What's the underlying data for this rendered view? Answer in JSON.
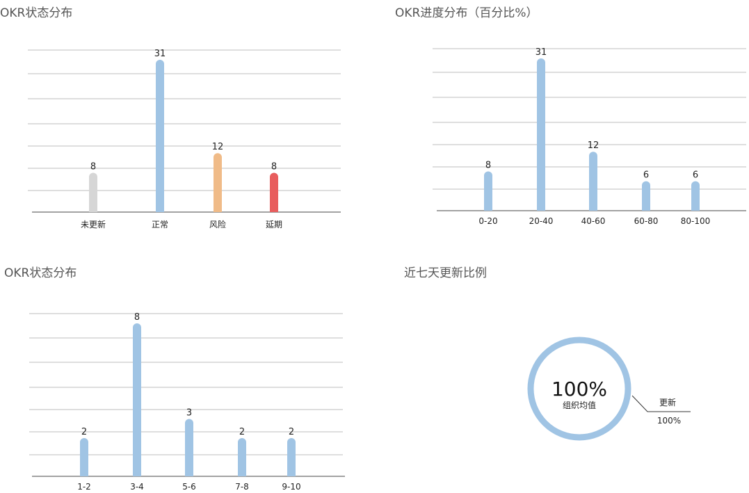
{
  "chart_data": [
    {
      "type": "bar",
      "title": "OKR状态分布",
      "categories": [
        "未更新",
        "正常",
        "风险",
        "延期"
      ],
      "values": [
        8,
        31,
        12,
        8
      ],
      "colors": [
        "#d6d6d6",
        "#a0c4e4",
        "#f0bb88",
        "#e85d5d"
      ],
      "ylim": [
        0,
        31
      ],
      "grid": true
    },
    {
      "type": "bar",
      "title": "OKR进度分布（百分比%）",
      "categories": [
        "0-20",
        "20-40",
        "40-60",
        "60-80",
        "80-100"
      ],
      "values": [
        8,
        31,
        12,
        6,
        6
      ],
      "colors": [
        "#a0c4e4",
        "#a0c4e4",
        "#a0c4e4",
        "#a0c4e4",
        "#a0c4e4"
      ],
      "ylim": [
        0,
        31
      ],
      "grid": true
    },
    {
      "type": "bar",
      "title": "OKR状态分布",
      "categories": [
        "1-2",
        "3-4",
        "5-6",
        "7-8",
        "9-10"
      ],
      "values": [
        2,
        8,
        3,
        2,
        2
      ],
      "colors": [
        "#a0c4e4",
        "#a0c4e4",
        "#a0c4e4",
        "#a0c4e4",
        "#a0c4e4"
      ],
      "ylim": [
        0,
        8
      ],
      "grid": true
    },
    {
      "type": "pie",
      "title": "近七天更新比例",
      "center_value": "100%",
      "center_label": "组织均值",
      "slices": [
        {
          "name": "更新",
          "value": 100,
          "label": "100%"
        }
      ],
      "color": "#a0c4e4"
    }
  ]
}
